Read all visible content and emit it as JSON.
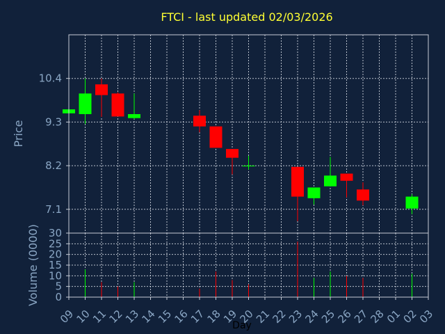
{
  "title": "FTCI - last updated 02/03/2026",
  "colors": {
    "background": "#11213a",
    "title": "#ffff33",
    "axis_text": "#8aa6c4",
    "up": "#00ff00",
    "down": "#ff0000",
    "frame": "#c6ccd6"
  },
  "chart_data": [
    {
      "type": "candlestick",
      "ylabel": "Price",
      "xlabel": "Day",
      "grid": true,
      "ylim": [
        6.5,
        11.5
      ],
      "yticks": [
        7.1,
        8.2,
        9.3,
        10.4
      ],
      "ytick_labels": [
        "7.1",
        "8.2",
        "9.3",
        "10.4"
      ],
      "x_tick_labels": [
        "09",
        "10",
        "11",
        "12",
        "13",
        "14",
        "15",
        "16",
        "17",
        "18",
        "19",
        "20",
        "21",
        "22",
        "23",
        "24",
        "25",
        "26",
        "27",
        "28",
        "01",
        "02",
        "03"
      ],
      "candles": [
        {
          "day": "09",
          "open": 9.52,
          "close": 9.62,
          "high": 9.64,
          "low": 9.5
        },
        {
          "day": "10",
          "open": 9.5,
          "close": 10.02,
          "high": 10.4,
          "low": 9.25
        },
        {
          "day": "11",
          "open": 10.25,
          "close": 9.98,
          "high": 10.4,
          "low": 9.43
        },
        {
          "day": "12",
          "open": 10.02,
          "close": 9.44,
          "high": 10.05,
          "low": 9.44
        },
        {
          "day": "13",
          "open": 9.4,
          "close": 9.5,
          "high": 10.02,
          "low": 9.38
        },
        {
          "day": "17",
          "open": 9.46,
          "close": 9.19,
          "high": 9.6,
          "low": 9.04
        },
        {
          "day": "18",
          "open": 9.19,
          "close": 8.65,
          "high": 9.19,
          "low": 8.65
        },
        {
          "day": "19",
          "open": 8.62,
          "close": 8.4,
          "high": 8.62,
          "low": 7.98
        },
        {
          "day": "20",
          "open": 8.2,
          "close": 8.2,
          "high": 8.45,
          "low": 8.1
        },
        {
          "day": "23",
          "open": 8.17,
          "close": 7.42,
          "high": 8.17,
          "low": 6.8
        },
        {
          "day": "24",
          "open": 7.38,
          "close": 7.65,
          "high": 7.65,
          "low": 7.22
        },
        {
          "day": "25",
          "open": 7.68,
          "close": 7.95,
          "high": 8.42,
          "low": 7.68
        },
        {
          "day": "26",
          "open": 8.0,
          "close": 7.82,
          "high": 8.0,
          "low": 7.4
        },
        {
          "day": "27",
          "open": 7.6,
          "close": 7.32,
          "high": 7.78,
          "low": 7.2
        },
        {
          "day": "02",
          "open": 7.12,
          "close": 7.42,
          "high": 7.48,
          "low": 6.98
        }
      ]
    },
    {
      "type": "bar",
      "ylabel": "Volume (0000)",
      "xlabel": "Day",
      "grid": true,
      "ylim": [
        0,
        30
      ],
      "yticks": [
        0,
        5,
        10,
        15,
        20,
        25,
        30
      ],
      "ytick_labels": [
        "0",
        "5",
        "10",
        "15",
        "20",
        "25",
        "30"
      ],
      "volumes": [
        {
          "day": "10",
          "value": 13,
          "direction": "up"
        },
        {
          "day": "11",
          "value": 7,
          "direction": "down"
        },
        {
          "day": "12",
          "value": 5,
          "direction": "down"
        },
        {
          "day": "13",
          "value": 7,
          "direction": "up"
        },
        {
          "day": "17",
          "value": 4,
          "direction": "down"
        },
        {
          "day": "18",
          "value": 12,
          "direction": "down"
        },
        {
          "day": "19",
          "value": 8,
          "direction": "down"
        },
        {
          "day": "20",
          "value": 6,
          "direction": "down"
        },
        {
          "day": "23",
          "value": 26,
          "direction": "down"
        },
        {
          "day": "24",
          "value": 9,
          "direction": "up"
        },
        {
          "day": "25",
          "value": 12,
          "direction": "up"
        },
        {
          "day": "26",
          "value": 10,
          "direction": "down"
        },
        {
          "day": "27",
          "value": 9,
          "direction": "down"
        },
        {
          "day": "02",
          "value": 11,
          "direction": "up"
        }
      ]
    }
  ]
}
